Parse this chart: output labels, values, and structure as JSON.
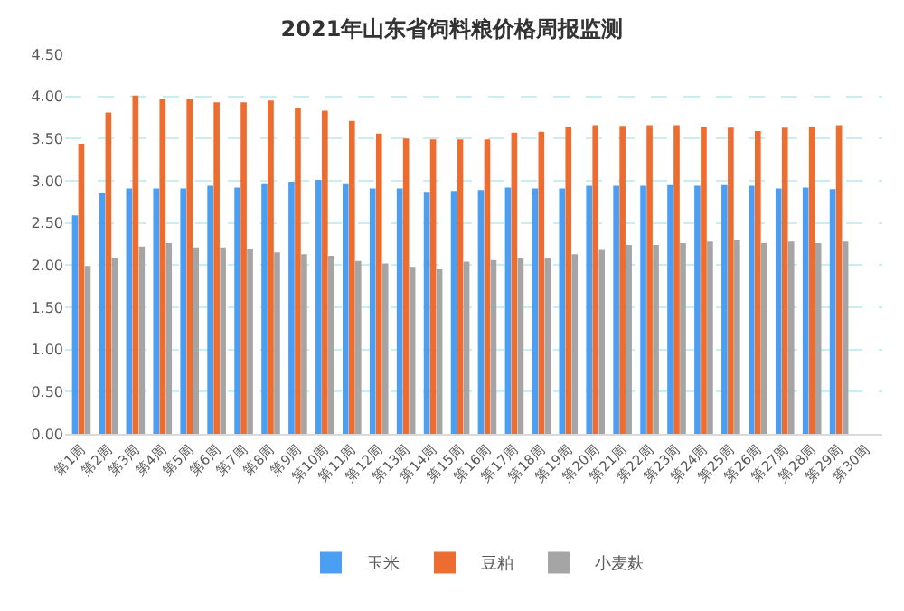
{
  "chart_data": {
    "type": "bar",
    "title": "2021年山东省饲料粮价格周报监测",
    "categories": [
      "第1周",
      "第2周",
      "第3周",
      "第4周",
      "第5周",
      "第6周",
      "第7周",
      "第8周",
      "第9周",
      "第10周",
      "第11周",
      "第12周",
      "第13周",
      "第14周",
      "第15周",
      "第16周",
      "第17周",
      "第18周",
      "第19周",
      "第20周",
      "第21周",
      "第22周",
      "第23周",
      "第24周",
      "第25周",
      "第26周",
      "第27周",
      "第28周",
      "第29周",
      "第30周"
    ],
    "series": [
      {
        "name": "玉米",
        "color": "#4a9ff5",
        "values": [
          2.59,
          2.86,
          2.91,
          2.91,
          2.91,
          2.94,
          2.92,
          2.96,
          2.99,
          3.01,
          2.96,
          2.91,
          2.91,
          2.87,
          2.88,
          2.89,
          2.92,
          2.91,
          2.91,
          2.94,
          2.94,
          2.94,
          2.95,
          2.94,
          2.95,
          2.94,
          2.91,
          2.92,
          2.9,
          null
        ]
      },
      {
        "name": "豆粕",
        "color": "#ed6c2f",
        "values": [
          3.44,
          3.81,
          4.01,
          3.97,
          3.97,
          3.93,
          3.93,
          3.95,
          3.86,
          3.83,
          3.71,
          3.56,
          3.5,
          3.49,
          3.49,
          3.49,
          3.57,
          3.58,
          3.64,
          3.66,
          3.65,
          3.66,
          3.66,
          3.64,
          3.63,
          3.59,
          3.63,
          3.64,
          3.66,
          null
        ]
      },
      {
        "name": "小麦麸",
        "color": "#a5a5a5",
        "values": [
          1.99,
          2.09,
          2.22,
          2.26,
          2.21,
          2.21,
          2.19,
          2.15,
          2.13,
          2.11,
          2.05,
          2.02,
          1.98,
          1.95,
          2.04,
          2.06,
          2.08,
          2.08,
          2.13,
          2.18,
          2.24,
          2.24,
          2.26,
          2.28,
          2.3,
          2.26,
          2.28,
          2.26,
          2.28,
          null
        ]
      }
    ],
    "ylim": [
      0,
      4.5
    ],
    "yticks": [
      {
        "value": 0,
        "label": "0.00"
      },
      {
        "value": 0.5,
        "label": "0.50"
      },
      {
        "value": 1,
        "label": "1.00"
      },
      {
        "value": 1.5,
        "label": "1.50"
      },
      {
        "value": 2,
        "label": "2.00"
      },
      {
        "value": 2.5,
        "label": "2.50"
      },
      {
        "value": 3,
        "label": "3.00"
      },
      {
        "value": 3.5,
        "label": "3.50"
      },
      {
        "value": 4,
        "label": "4.00"
      },
      {
        "value": 4.5,
        "label": "4.50"
      }
    ],
    "grid": "y",
    "legend": "bottom"
  }
}
